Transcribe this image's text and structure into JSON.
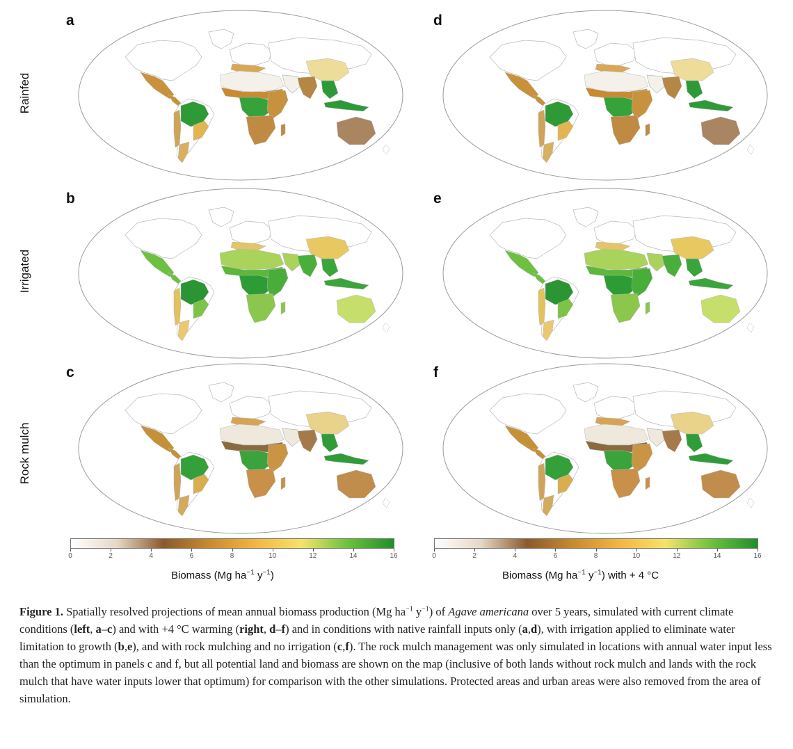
{
  "panels": [
    {
      "letter": "a",
      "row": 0,
      "col": 0
    },
    {
      "letter": "b",
      "row": 1,
      "col": 0
    },
    {
      "letter": "c",
      "row": 2,
      "col": 0
    },
    {
      "letter": "d",
      "row": 0,
      "col": 1
    },
    {
      "letter": "e",
      "row": 1,
      "col": 1
    },
    {
      "letter": "f",
      "row": 2,
      "col": 1
    }
  ],
  "row_labels": [
    "Rainfed",
    "Irrigated",
    "Rock mulch"
  ],
  "colorbar": {
    "ticks": [
      "0",
      "2",
      "4",
      "6",
      "8",
      "10",
      "12",
      "14",
      "16"
    ],
    "range": [
      0,
      16
    ],
    "stops": [
      "#ffffff",
      "#e6d7c5",
      "#8b5a2b",
      "#c98a30",
      "#f2b640",
      "#f6e36a",
      "#6cc23a",
      "#1f8f2c"
    ],
    "left_title_pre": "Biomass (Mg ha",
    "left_title_sup1": "−1",
    "left_title_mid": " y",
    "left_title_sup2": "−1",
    "left_title_post": ")",
    "right_title_pre": "Biomass (Mg ha",
    "right_title_sup1": "−1",
    "right_title_mid": " y",
    "right_title_sup2": "−1",
    "right_title_post": ") with + 4 °C"
  },
  "caption": {
    "label": "Figure 1.",
    "t1": " Spatially resolved projections of mean annual biomass production (Mg ha",
    "s1": "−1",
    "t2": " y",
    "s2": "−1",
    "t3": ") of ",
    "species": "Agave americana",
    "t4": " over 5 years, simulated with current climate conditions (",
    "b1": "left",
    "t5": ", ",
    "b2": "a",
    "t6": "–",
    "b3": "c",
    "t7": ") and with +4 °C warming (",
    "b4": "right",
    "t8": ", ",
    "b5": "d",
    "t9": "–",
    "b6": "f",
    "t10": ") and in conditions with native rainfall inputs only (",
    "b7": "a",
    "t11": ",",
    "b8": "d",
    "t12": "), with irrigation applied to eliminate water limitation to growth (",
    "b9": "b",
    "t13": ",",
    "b10": "e",
    "t14": "), and with rock mulching and no irrigation (",
    "b11": "c",
    "t15": ",",
    "b12": "f",
    "t16": "). The rock mulch management was only simulated in locations with annual water input less than the optimum in panels c and f, but all potential land and biomass are shown on the map (inclusive of both lands without rock mulch and lands with the rock mulch that have water inputs lower that optimum) for comparison with the other simulations. Protected areas and urban areas were also removed from the area of simulation."
  },
  "map_colors": {
    "rainfed": {
      "amazon": "#2e9a35",
      "sahel": "#c98a30",
      "sahara": "#f3f1ea",
      "congo": "#36a23a",
      "eafrica": "#c7923e",
      "india": "#b58745",
      "seasia": "#2d9a38",
      "australia": "#a98561",
      "mexico": "#c8913a",
      "brazil_s": "#e2b552",
      "andes": "#cfa35a",
      "china": "#eedc9a",
      "med": "#d9a855",
      "argentina": "#d7b060",
      "safrica": "#c08a42"
    },
    "irrigated": {
      "amazon": "#2b9533",
      "sahel": "#5cb73a",
      "sahara": "#a9d35a",
      "congo": "#2d9c35",
      "eafrica": "#49ad3a",
      "india": "#4aae3b",
      "seasia": "#3aa53a",
      "australia": "#c6df6a",
      "mexico": "#6ec040",
      "brazil_s": "#7cc348",
      "andes": "#e3c15e",
      "china": "#e8c860",
      "med": "#e3c46a",
      "argentina": "#e9c870",
      "safrica": "#8ac74c"
    },
    "rockmulch": {
      "amazon": "#34a03a",
      "sahel": "#8b6a40",
      "sahara": "#efe9dd",
      "congo": "#3aa33c",
      "eafrica": "#c99545",
      "india": "#a47a4a",
      "seasia": "#2f9c38",
      "australia": "#c08d4c",
      "mexico": "#c59138",
      "brazil_s": "#d9ae50",
      "andes": "#cfa35a",
      "china": "#e9d28a",
      "med": "#d7a456",
      "argentina": "#d4ab5c",
      "safrica": "#c89048"
    }
  }
}
